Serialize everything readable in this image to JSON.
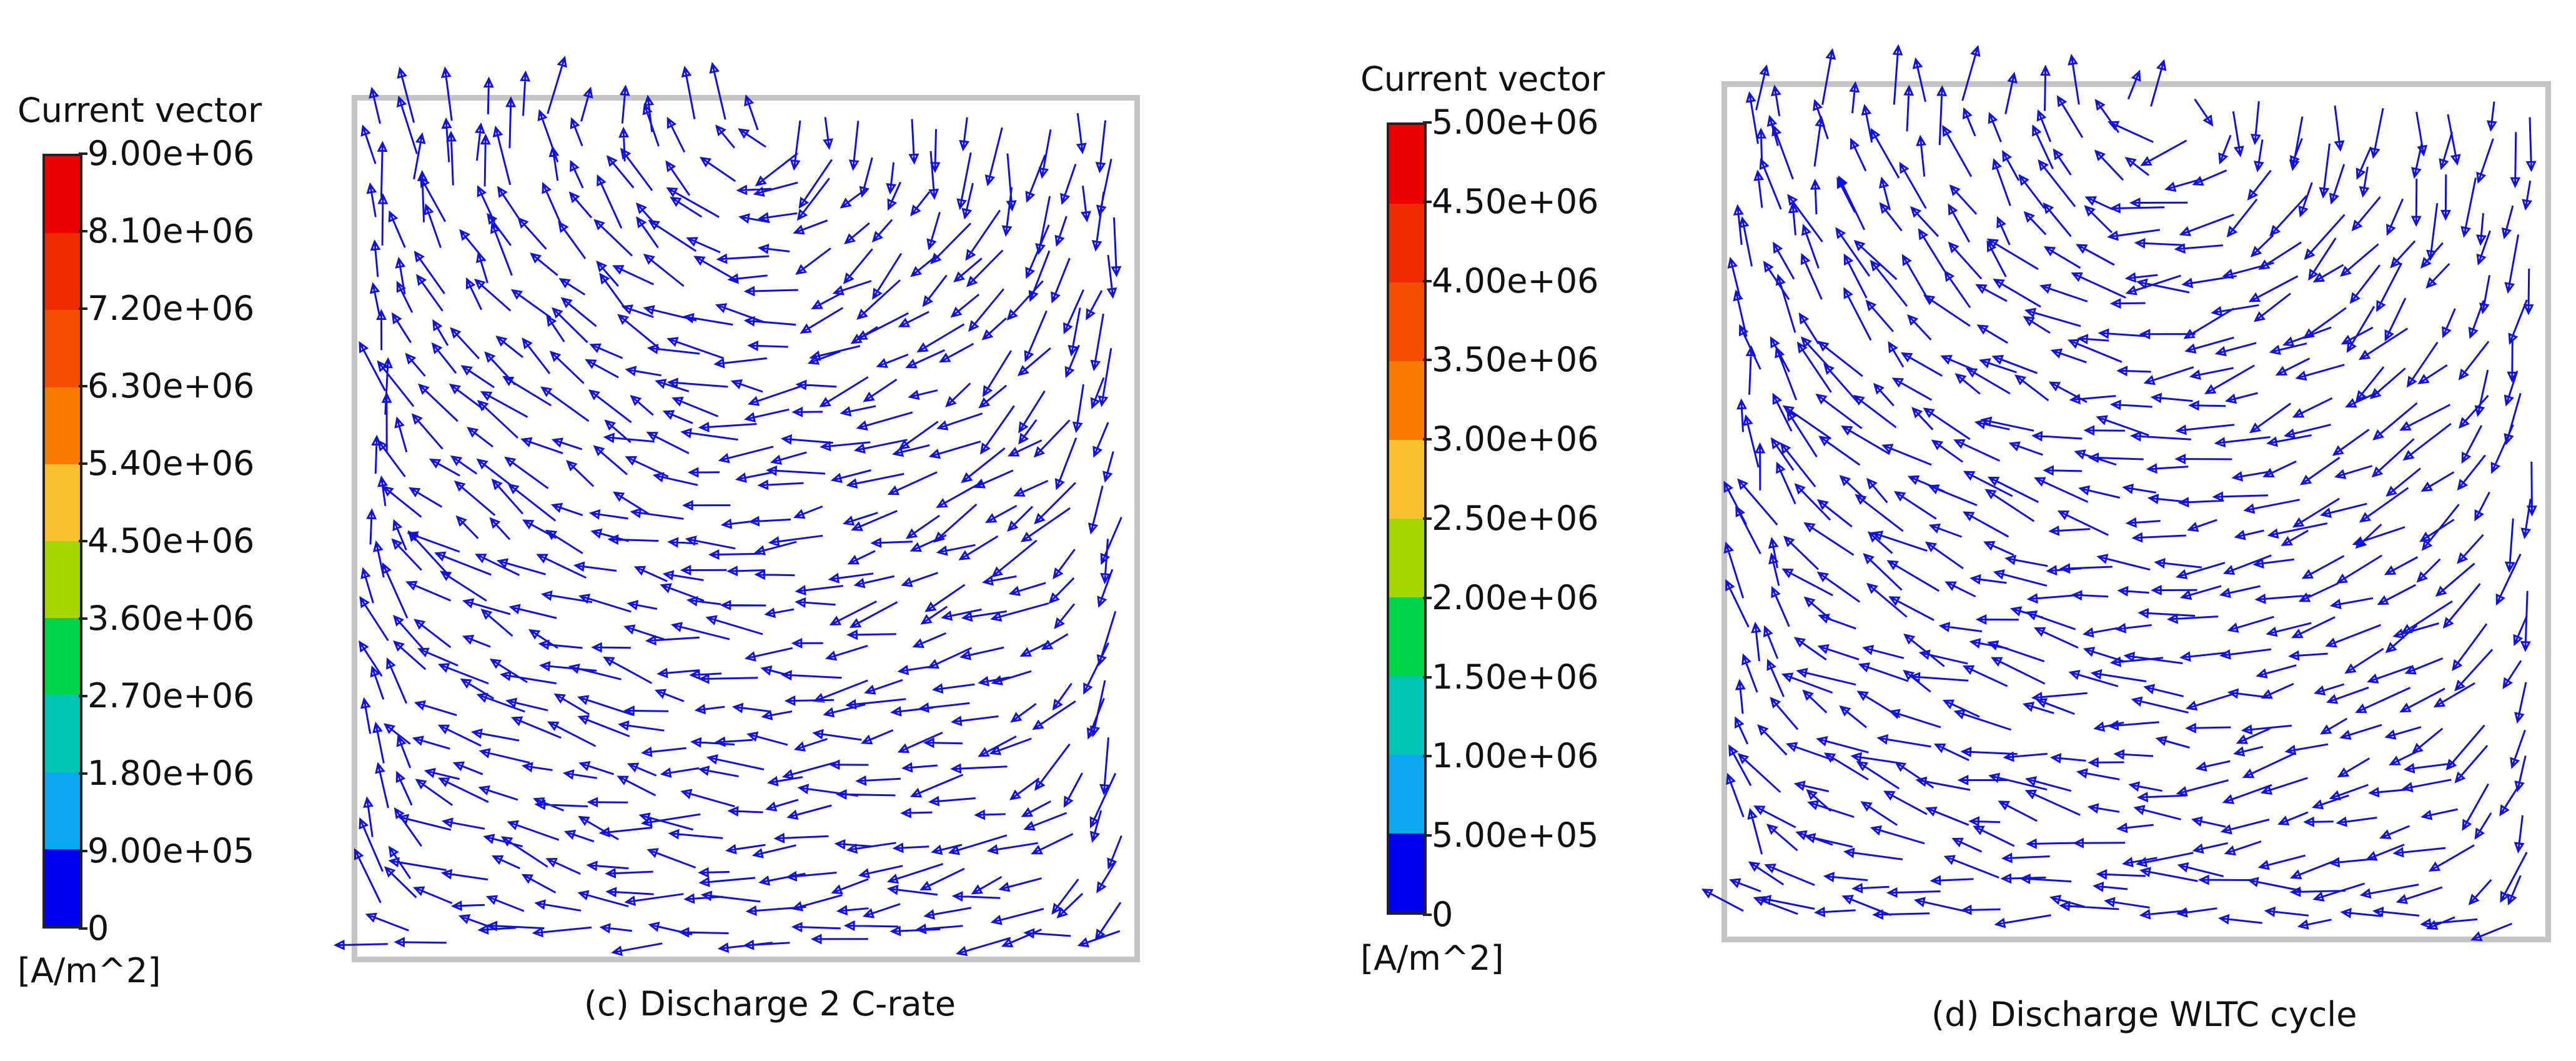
{
  "panels": [
    {
      "legend_title": "Current vector",
      "unit": "[A/m^2]",
      "ticks": [
        "9.00e+06",
        "8.10e+06",
        "7.20e+06",
        "6.30e+06",
        "5.40e+06",
        "4.50e+06",
        "3.60e+06",
        "2.70e+06",
        "1.80e+06",
        "9.00e+05",
        "0"
      ],
      "colors": [
        "#ee0000",
        "#f02a00",
        "#f54e00",
        "#f97a00",
        "#fbc02d",
        "#a5d600",
        "#00d44a",
        "#00c4b4",
        "#0aa8f0",
        "#0000f0"
      ],
      "caption": "(c) Discharge 2 C-rate"
    },
    {
      "legend_title": "Current vector",
      "unit": "[A/m^2]",
      "ticks": [
        "5.00e+06",
        "4.50e+06",
        "4.00e+06",
        "3.50e+06",
        "3.00e+06",
        "2.50e+06",
        "2.00e+06",
        "1.50e+06",
        "1.00e+06",
        "5.00e+05",
        "0"
      ],
      "colors": [
        "#ee0000",
        "#f02a00",
        "#f54e00",
        "#f97a00",
        "#fbc02d",
        "#a5d600",
        "#00d44a",
        "#00c4b4",
        "#0aa8f0",
        "#0000f0"
      ],
      "caption": "(d) Discharge WLTC cycle"
    }
  ],
  "vector_color": "#1010e0"
}
